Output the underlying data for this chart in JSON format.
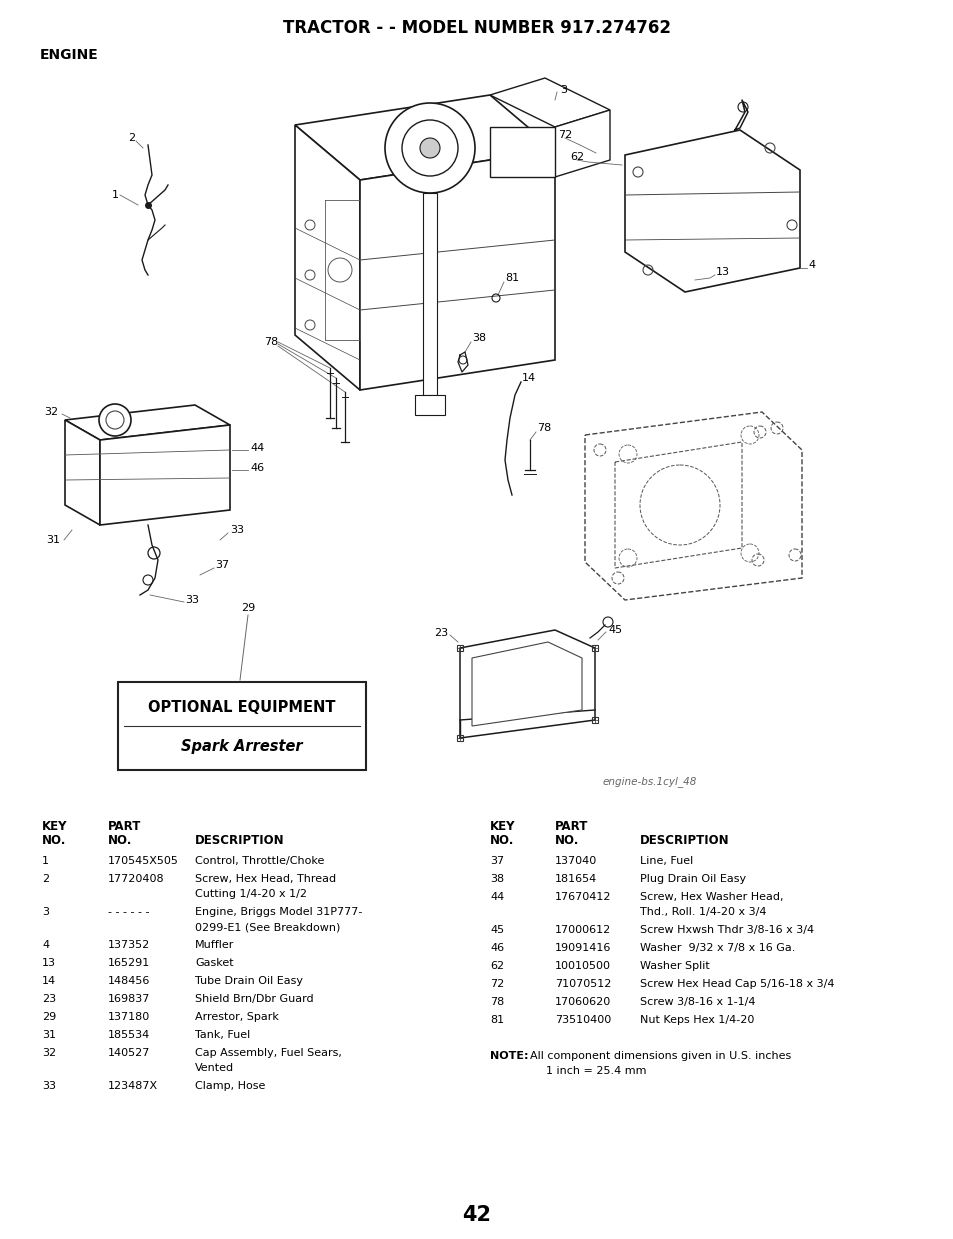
{
  "title": "TRACTOR - - MODEL NUMBER 917.274762",
  "section": "ENGINE",
  "image_credit": "engine-bs.1cyl_48",
  "page_number": "42",
  "optional_box_title": "OPTIONAL EQUIPMENT",
  "optional_box_subtitle": "Spark Arrester",
  "parts_left": [
    [
      "1",
      "170545X505",
      "Control, Throttle/Choke"
    ],
    [
      "2",
      "17720408",
      "Screw, Hex Head, Thread\nCutting 1/4-20 x 1/2"
    ],
    [
      "3",
      "- - - - - -",
      "Engine, Briggs Model 31P777-\n0299-E1 (See Breakdown)"
    ],
    [
      "4",
      "137352",
      "Muffler"
    ],
    [
      "13",
      "165291",
      "Gasket"
    ],
    [
      "14",
      "148456",
      "Tube Drain Oil Easy"
    ],
    [
      "23",
      "169837",
      "Shield Brn/Dbr Guard"
    ],
    [
      "29",
      "137180",
      "Arrestor, Spark"
    ],
    [
      "31",
      "185534",
      "Tank, Fuel"
    ],
    [
      "32",
      "140527",
      "Cap Assembly, Fuel Sears,\nVented"
    ],
    [
      "33",
      "123487X",
      "Clamp, Hose"
    ]
  ],
  "parts_right": [
    [
      "37",
      "137040",
      "Line, Fuel"
    ],
    [
      "38",
      "181654",
      "Plug Drain Oil Easy"
    ],
    [
      "44",
      "17670412",
      "Screw, Hex Washer Head,\nThd., Roll. 1/4-20 x 3/4"
    ],
    [
      "45",
      "17000612",
      "Screw Hxwsh Thdr 3/8-16 x 3/4"
    ],
    [
      "46",
      "19091416",
      "Washer  9/32 x 7/8 x 16 Ga."
    ],
    [
      "62",
      "10010500",
      "Washer Split"
    ],
    [
      "72",
      "71070512",
      "Screw Hex Head Cap 5/16-18 x 3/4"
    ],
    [
      "78",
      "17060620",
      "Screw 3/8-16 x 1-1/4"
    ],
    [
      "81",
      "73510400",
      "Nut Keps Hex 1/4-20"
    ]
  ],
  "bg_color": "#ffffff",
  "text_color": "#000000"
}
